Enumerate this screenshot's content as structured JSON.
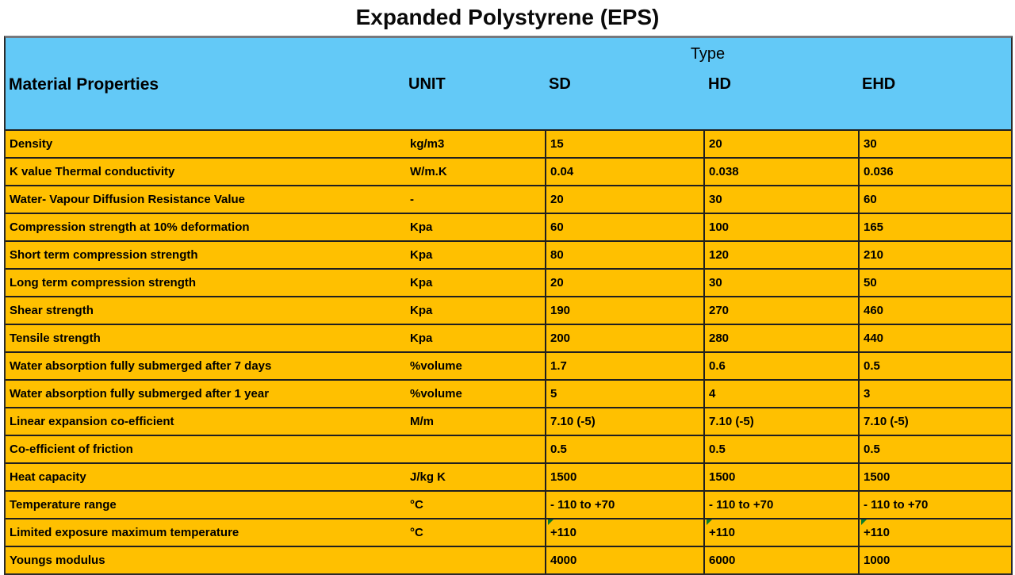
{
  "title": "Expanded Polystyrene (EPS)",
  "colors": {
    "header_bg": "#63C9F7",
    "row_bg": "#FFC000",
    "border": "#1F1F1F",
    "flag_green": "#0B7D2B"
  },
  "table": {
    "type_header": "Type",
    "columns": {
      "property": "Material Properties",
      "unit": "UNIT",
      "sd": "SD",
      "hd": "HD",
      "ehd": "EHD"
    },
    "rows": [
      {
        "property": "Density",
        "unit": "kg/m3",
        "sd": "15",
        "hd": "20",
        "ehd": "30"
      },
      {
        "property": "K value Thermal conductivity",
        "unit": "W/m.K",
        "sd": "0.04",
        "hd": "0.038",
        "ehd": "0.036"
      },
      {
        "property": "Water- Vapour Diffusion Resistance Value",
        "unit": "-",
        "sd": "20",
        "hd": "30",
        "ehd": "60"
      },
      {
        "property": "Compression strength at 10% deformation",
        "unit": "Kpa",
        "sd": "60",
        "hd": "100",
        "ehd": "165"
      },
      {
        "property": "Short term compression strength",
        "unit": "Kpa",
        "sd": "80",
        "hd": "120",
        "ehd": "210"
      },
      {
        "property": "Long term compression strength",
        "unit": "Kpa",
        "sd": "20",
        "hd": "30",
        "ehd": "50"
      },
      {
        "property": "Shear strength",
        "unit": "Kpa",
        "sd": "190",
        "hd": "270",
        "ehd": "460"
      },
      {
        "property": "Tensile strength",
        "unit": "Kpa",
        "sd": "200",
        "hd": "280",
        "ehd": "440"
      },
      {
        "property": "Water absorption fully submerged after 7 days",
        "unit": "%volume",
        "sd": "1.7",
        "hd": "0.6",
        "ehd": "0.5"
      },
      {
        "property": "Water absorption fully submerged after 1 year",
        "unit": "%volume",
        "sd": "5",
        "hd": "4",
        "ehd": "3"
      },
      {
        "property": "Linear expansion co-efficient",
        "unit": "M/m",
        "sd": "7.10 (-5)",
        "hd": "7.10 (-5)",
        "ehd": "7.10 (-5)"
      },
      {
        "property": "Co-efficient of friction",
        "unit": "",
        "sd": "0.5",
        "hd": "0.5",
        "ehd": "0.5"
      },
      {
        "property": "Heat capacity",
        "unit": "J/kg K",
        "sd": "1500",
        "hd": "1500",
        "ehd": "1500"
      },
      {
        "property": "Temperature range",
        "unit": "°C",
        "sd": "- 110 to +70",
        "hd": "- 110 to +70",
        "ehd": "- 110 to +70"
      },
      {
        "property": "Limited exposure maximum temperature",
        "unit": "°C",
        "sd": "+110",
        "hd": "+110",
        "ehd": "+110",
        "flagged": true
      },
      {
        "property": "Youngs modulus",
        "unit": "",
        "sd": "4000",
        "hd": "6000",
        "ehd": "1000"
      }
    ]
  }
}
